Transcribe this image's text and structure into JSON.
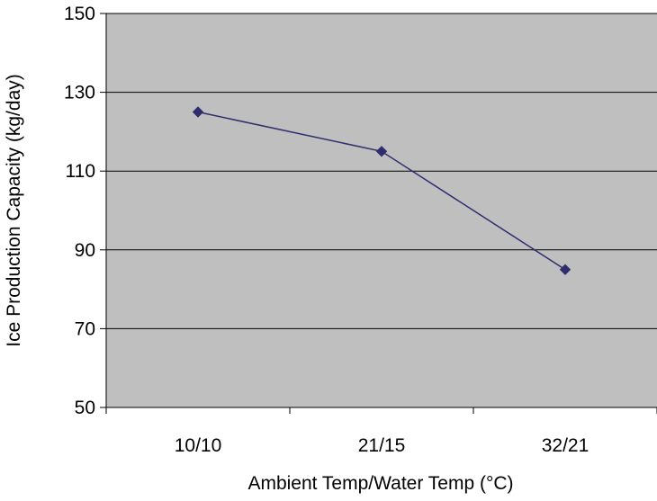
{
  "chart_data": {
    "type": "line",
    "title": "",
    "xlabel": "Ambient Temp/Water Temp (°C)",
    "ylabel": "Ice Production Capacity (kg/day)",
    "categories": [
      "10/10",
      "21/15",
      "32/21"
    ],
    "series": [
      {
        "values": [
          125,
          115,
          85
        ],
        "color": "#2e2e6e",
        "marker": "diamond"
      }
    ],
    "ylim": [
      50,
      150
    ],
    "yticks": [
      50,
      70,
      90,
      110,
      130,
      150
    ],
    "grid": true,
    "plot_background": "#bfbfbf",
    "gridline_color": "#000000",
    "legend": "none"
  }
}
